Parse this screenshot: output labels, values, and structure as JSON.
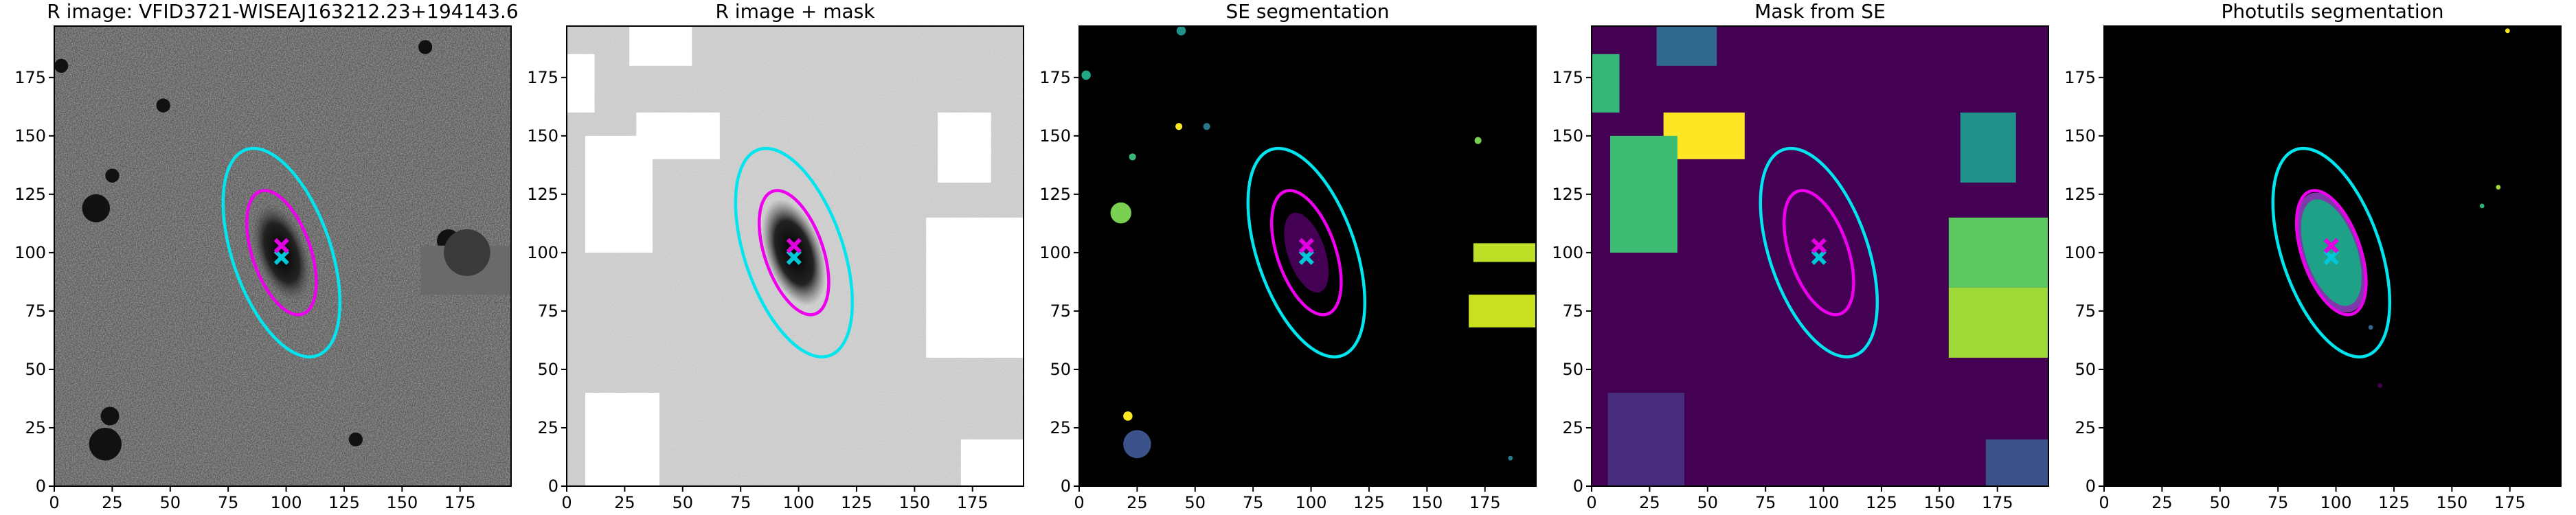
{
  "chart_data": [
    {
      "type": "image",
      "title": "R image: VFID3721-WISEAJ163212.23+194143.6",
      "xlim": [
        0,
        197
      ],
      "ylim": [
        0,
        197
      ],
      "xticks": [
        0,
        25,
        50,
        75,
        100,
        125,
        150,
        175
      ],
      "yticks": [
        0,
        25,
        50,
        75,
        100,
        125,
        150,
        175
      ]
    },
    {
      "type": "image",
      "title": "R image + mask",
      "xlim": [
        0,
        197
      ],
      "ylim": [
        0,
        197
      ],
      "xticks": [
        0,
        25,
        50,
        75,
        100,
        125,
        150,
        175
      ],
      "yticks": [
        0,
        25,
        50,
        75,
        100,
        125,
        150,
        175
      ]
    },
    {
      "type": "image",
      "title": "SE segmentation",
      "xlim": [
        0,
        197
      ],
      "ylim": [
        0,
        197
      ],
      "xticks": [
        0,
        25,
        50,
        75,
        100,
        125,
        150,
        175
      ],
      "yticks": [
        0,
        25,
        50,
        75,
        100,
        125,
        150,
        175
      ]
    },
    {
      "type": "image",
      "title": "Mask from SE",
      "xlim": [
        0,
        197
      ],
      "ylim": [
        0,
        197
      ],
      "xticks": [
        0,
        25,
        50,
        75,
        100,
        125,
        150,
        175
      ],
      "yticks": [
        0,
        25,
        50,
        75,
        100,
        125,
        150,
        175
      ]
    },
    {
      "type": "image",
      "title": "Photutils segmentation",
      "xlim": [
        0,
        197
      ],
      "ylim": [
        0,
        197
      ],
      "xticks": [
        0,
        25,
        50,
        75,
        100,
        125,
        150,
        175
      ],
      "yticks": [
        0,
        25,
        50,
        75,
        100,
        125,
        150,
        175
      ]
    }
  ]
}
